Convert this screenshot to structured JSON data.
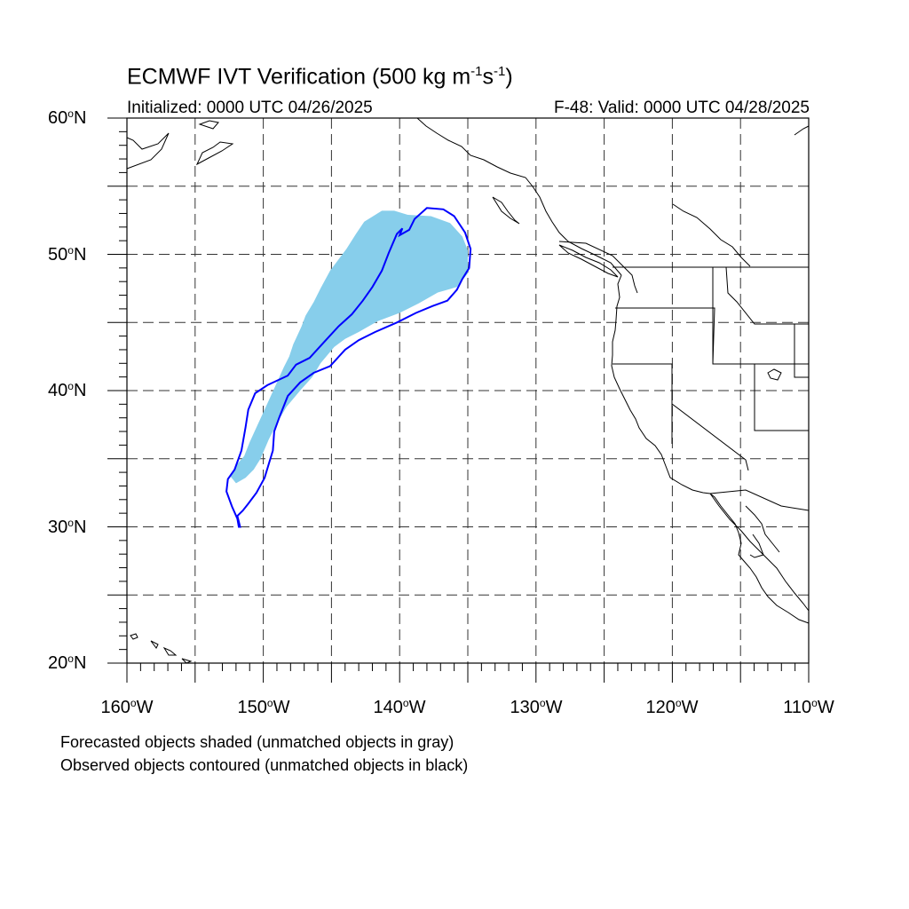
{
  "title": {
    "main": "ECMWF IVT Verification (500 kg m",
    "sup1": "-1",
    "mid": "s",
    "sup2": "-1",
    "close": ")"
  },
  "subtitle": {
    "initialized": "Initialized: 0000 UTC 04/26/2025",
    "valid": "F-48: Valid: 0000 UTC 04/28/2025"
  },
  "map": {
    "lon_range": [
      -160,
      -110
    ],
    "lat_range": [
      20,
      60
    ],
    "grid": "dashed every 5 degrees",
    "lat_labels": [
      {
        "value": 60,
        "text": "60",
        "hemi": "N"
      },
      {
        "value": 50,
        "text": "50",
        "hemi": "N"
      },
      {
        "value": 40,
        "text": "40",
        "hemi": "N"
      },
      {
        "value": 30,
        "text": "30",
        "hemi": "N"
      },
      {
        "value": 20,
        "text": "20",
        "hemi": "N"
      }
    ],
    "lon_labels": [
      {
        "value": -160,
        "text": "160",
        "hemi": "W"
      },
      {
        "value": -150,
        "text": "150",
        "hemi": "W"
      },
      {
        "value": -140,
        "text": "140",
        "hemi": "W"
      },
      {
        "value": -130,
        "text": "130",
        "hemi": "W"
      },
      {
        "value": -120,
        "text": "120",
        "hemi": "W"
      },
      {
        "value": -110,
        "text": "110",
        "hemi": "W"
      }
    ],
    "colors": {
      "forecast_fill": "#87ceeb",
      "observed_contour": "#0000ff",
      "coastline": "#000000",
      "grid": "#333333"
    },
    "forecast_object": [
      [
        -152.0,
        33.2
      ],
      [
        -151.3,
        33.6
      ],
      [
        -150.7,
        34.2
      ],
      [
        -150.2,
        35.0
      ],
      [
        -149.6,
        36.4
      ],
      [
        -149.0,
        37.6
      ],
      [
        -148.3,
        38.8
      ],
      [
        -147.3,
        40.0
      ],
      [
        -146.4,
        41.0
      ],
      [
        -145.8,
        42.0
      ],
      [
        -144.8,
        43.2
      ],
      [
        -144.0,
        43.8
      ],
      [
        -143.0,
        44.3
      ],
      [
        -141.6,
        45.1
      ],
      [
        -140.0,
        45.7
      ],
      [
        -138.6,
        46.4
      ],
      [
        -137.2,
        47.2
      ],
      [
        -135.8,
        47.6
      ],
      [
        -135.0,
        48.6
      ],
      [
        -135.0,
        50.3
      ],
      [
        -135.4,
        51.3
      ],
      [
        -136.3,
        52.3
      ],
      [
        -137.7,
        52.8
      ],
      [
        -139.4,
        52.9
      ],
      [
        -140.4,
        53.2
      ],
      [
        -141.3,
        53.2
      ],
      [
        -142.6,
        52.4
      ],
      [
        -143.2,
        51.5
      ],
      [
        -143.9,
        50.4
      ],
      [
        -144.5,
        49.6
      ],
      [
        -145.1,
        48.8
      ],
      [
        -145.8,
        47.5
      ],
      [
        -146.3,
        46.5
      ],
      [
        -146.9,
        45.5
      ],
      [
        -147.2,
        44.7
      ],
      [
        -147.8,
        43.4
      ],
      [
        -148.1,
        42.5
      ],
      [
        -148.5,
        41.7
      ],
      [
        -149.0,
        40.6
      ],
      [
        -149.5,
        39.5
      ],
      [
        -150.0,
        38.4
      ],
      [
        -150.5,
        37.3
      ],
      [
        -151.0,
        36.2
      ],
      [
        -151.4,
        35.2
      ],
      [
        -152.0,
        34.5
      ],
      [
        -152.4,
        33.7
      ]
    ],
    "observed_object": [
      [
        -151.8,
        30.0
      ],
      [
        -151.9,
        30.6
      ],
      [
        -152.3,
        31.5
      ],
      [
        -152.7,
        32.6
      ],
      [
        -152.6,
        33.5
      ],
      [
        -152.1,
        34.2
      ],
      [
        -151.6,
        35.6
      ],
      [
        -151.3,
        37.3
      ],
      [
        -151.1,
        38.6
      ],
      [
        -150.6,
        39.8
      ],
      [
        -149.7,
        40.4
      ],
      [
        -148.2,
        41.1
      ],
      [
        -147.6,
        41.9
      ],
      [
        -146.6,
        42.4
      ],
      [
        -145.6,
        43.5
      ],
      [
        -144.5,
        44.7
      ],
      [
        -143.5,
        45.6
      ],
      [
        -142.7,
        46.6
      ],
      [
        -142.0,
        47.6
      ],
      [
        -141.3,
        48.8
      ],
      [
        -140.8,
        50.1
      ],
      [
        -140.2,
        51.5
      ],
      [
        -139.8,
        51.9
      ],
      [
        -140.0,
        51.4
      ],
      [
        -139.3,
        51.8
      ],
      [
        -138.9,
        52.6
      ],
      [
        -138.0,
        53.4
      ],
      [
        -136.8,
        53.3
      ],
      [
        -136.0,
        52.8
      ],
      [
        -135.2,
        51.6
      ],
      [
        -134.8,
        50.4
      ],
      [
        -134.9,
        49.0
      ],
      [
        -135.4,
        48.2
      ],
      [
        -135.8,
        47.4
      ],
      [
        -136.5,
        46.6
      ],
      [
        -137.6,
        46.2
      ],
      [
        -138.8,
        45.7
      ],
      [
        -140.2,
        45.0
      ],
      [
        -141.8,
        44.3
      ],
      [
        -143.0,
        43.7
      ],
      [
        -144.0,
        43.0
      ],
      [
        -145.1,
        41.8
      ],
      [
        -146.3,
        41.3
      ],
      [
        -147.3,
        40.6
      ],
      [
        -148.2,
        39.6
      ],
      [
        -148.8,
        38.1
      ],
      [
        -149.2,
        37.0
      ],
      [
        -149.3,
        35.6
      ],
      [
        -149.6,
        34.6
      ],
      [
        -149.9,
        33.6
      ],
      [
        -150.5,
        32.5
      ],
      [
        -151.1,
        31.7
      ],
      [
        -151.5,
        31.2
      ],
      [
        -151.9,
        30.8
      ],
      [
        -151.7,
        30.0
      ]
    ]
  },
  "footnotes": {
    "line1": "Forecasted objects shaded (unmatched objects in gray)",
    "line2": "Observed objects contoured (unmatched objects in black)"
  }
}
